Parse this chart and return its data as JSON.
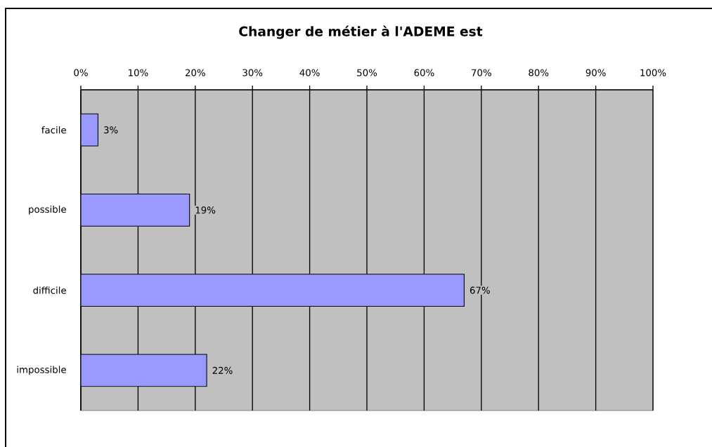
{
  "chart_data": {
    "type": "bar",
    "orientation": "horizontal",
    "title": "Changer de métier à l'ADEME est",
    "categories": [
      "facile",
      "possible",
      "difficile",
      "impossible"
    ],
    "values": [
      3,
      19,
      67,
      22
    ],
    "value_labels": [
      "3%",
      "19%",
      "67%",
      "22%"
    ],
    "color": "#9999ff",
    "xlim": [
      0,
      100
    ],
    "xticks": [
      {
        "value": 0,
        "label": "0%"
      },
      {
        "value": 10,
        "label": "10%"
      },
      {
        "value": 20,
        "label": "20%"
      },
      {
        "value": 30,
        "label": "30%"
      },
      {
        "value": 40,
        "label": "40%"
      },
      {
        "value": 50,
        "label": "50%"
      },
      {
        "value": 60,
        "label": "60%"
      },
      {
        "value": 70,
        "label": "70%"
      },
      {
        "value": 80,
        "label": "80%"
      },
      {
        "value": 90,
        "label": "90%"
      },
      {
        "value": 100,
        "label": "100%"
      }
    ],
    "grid": "x"
  }
}
